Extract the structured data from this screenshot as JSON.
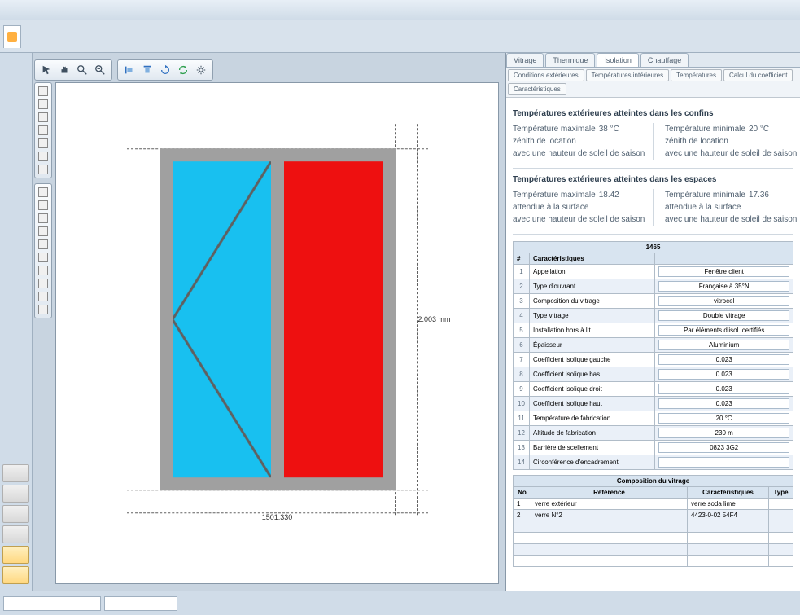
{
  "ribbon": {
    "active_tab_icon": "document-icon"
  },
  "toolbar": {
    "group1_icons": [
      "pointer",
      "hand",
      "zoom-in",
      "zoom-out"
    ],
    "group2_icons": [
      "align-left",
      "align-top",
      "rotate",
      "refresh",
      "settings"
    ]
  },
  "palette": {
    "upper_swatches": 7,
    "lower_swatches": 10
  },
  "drawing": {
    "type": "window-frame",
    "frame_color": "#a0a0a0",
    "panes": [
      {
        "side": "left",
        "fill": "#18c0f0",
        "opening_indicator": true
      },
      {
        "side": "right",
        "fill": "#ee1010",
        "opening_indicator": false
      }
    ],
    "dim_width_label": "1501.330",
    "dim_height_label": "2.003 mm",
    "guide_color": "#606060"
  },
  "right_panel": {
    "tabs": [
      "Vitrage",
      "Thermique",
      "Isolation",
      "Chauffage"
    ],
    "active_tab_index": 2,
    "subtabs": [
      "Conditions extérieures",
      "Températures intérieures",
      "Températures",
      "Calcul du coefficient",
      "Caractéristiques"
    ],
    "section1": {
      "title": "Températures extérieures atteintes dans les confins",
      "left": {
        "line1_lbl": "Température maximale",
        "line1_val": "38 °C",
        "line2_lbl": "zénith de location",
        "line3_lbl": "avec une hauteur de soleil de saison"
      },
      "right": {
        "line1_lbl": "Température minimale",
        "line1_val": "20 °C",
        "line2_lbl": "zénith de location",
        "line3_lbl": "avec une hauteur de soleil de saison"
      }
    },
    "section2": {
      "title": "Températures extérieures atteintes dans les espaces",
      "left": {
        "line1_lbl": "Température maximale",
        "line1_val": "18.42",
        "line2_lbl": "attendue à la surface",
        "line3_lbl": "avec une hauteur de soleil de saison"
      },
      "right": {
        "line1_lbl": "Température minimale",
        "line1_val": "17.36",
        "line2_lbl": "attendue à la surface",
        "line3_lbl": "avec une hauteur de soleil de saison"
      }
    },
    "prop_table": {
      "main_header": "1465",
      "col1": "Caractéristiques",
      "rows": [
        {
          "n": "1",
          "label": "Appellation",
          "value": "Fenêtre client"
        },
        {
          "n": "2",
          "label": "Type d'ouvrant",
          "value": "Française à 35°N"
        },
        {
          "n": "3",
          "label": "Composition du vitrage",
          "value": "vitrocel"
        },
        {
          "n": "4",
          "label": "Type vitrage",
          "value": "Double vitrage"
        },
        {
          "n": "5",
          "label": "Installation hors à lit",
          "value": "Par éléments d'isol. certifiés"
        },
        {
          "n": "6",
          "label": "Épaisseur",
          "value": "Aluminium"
        },
        {
          "n": "7",
          "label": "Coefficient isolique gauche",
          "value": "0.023"
        },
        {
          "n": "8",
          "label": "Coefficient isolique bas",
          "value": "0.023"
        },
        {
          "n": "9",
          "label": "Coefficient isolique droit",
          "value": "0.023"
        },
        {
          "n": "10",
          "label": "Coefficient isolique haut",
          "value": "0.023"
        },
        {
          "n": "11",
          "label": "Température de fabrication",
          "value": "20 °C"
        },
        {
          "n": "12",
          "label": "Altitude de fabrication",
          "value": "230 m"
        },
        {
          "n": "13",
          "label": "Barrière de scellement",
          "value": "0823 3G2"
        },
        {
          "n": "14",
          "label": "Circonférence d'encadrement",
          "value": ""
        }
      ]
    },
    "comp_table": {
      "title": "Composition du vitrage",
      "col_no": "No",
      "col_ref": "Référence",
      "col_car": "Caractéristiques",
      "col_type": "Type",
      "rows": [
        {
          "n": "1",
          "ref": "verre extérieur",
          "car": "verre soda lime",
          "type": ""
        },
        {
          "n": "2",
          "ref": "verre N°2",
          "car": "4423-0-02 54F4",
          "type": ""
        }
      ]
    }
  },
  "status": {
    "box1_width": 120,
    "box2_width": 90
  },
  "colors": {
    "app_bg": "#c8d4e0",
    "panel_bg": "#f0f4f8",
    "border": "#a0b0c0",
    "table_header": "#d8e4f0",
    "table_stripe": "#eaf0f8"
  }
}
